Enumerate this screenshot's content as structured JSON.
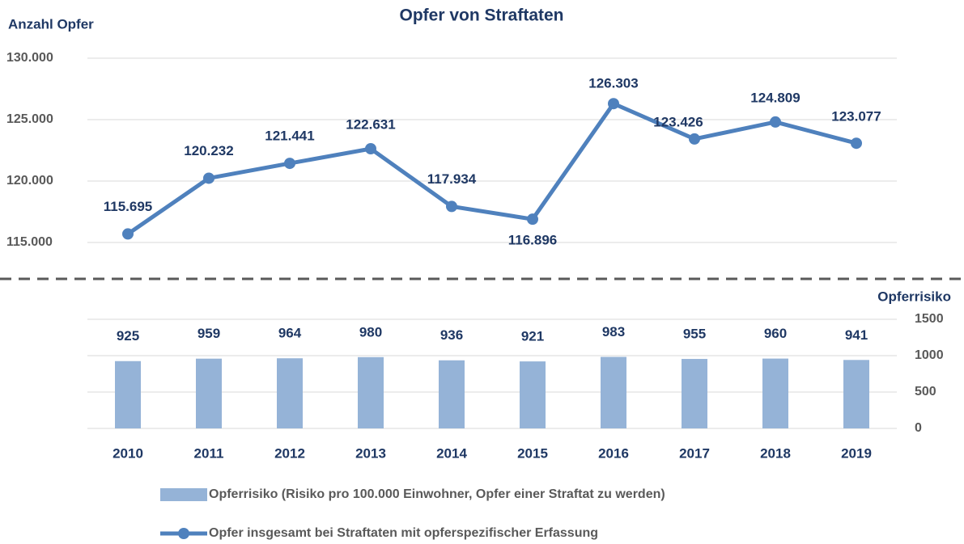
{
  "chart_data": [
    {
      "type": "line",
      "title": "Opfer von Straftaten",
      "y_label": "Anzahl Opfer",
      "series": [
        {
          "name": "Opfer insgesamt bei Straftaten mit opferspezifischer Erfassung",
          "color": "#4f81bd",
          "values": [
            115695,
            120232,
            121441,
            122631,
            117934,
            116896,
            126303,
            123426,
            124809,
            123077
          ],
          "value_labels": [
            "115.695",
            "120.232",
            "121.441",
            "122.631",
            "117.934",
            "116.896",
            "126.303",
            "123.426",
            "124.809",
            "123.077"
          ]
        }
      ],
      "ylim": [
        115000,
        130000
      ],
      "yticks": [
        {
          "value": 115000,
          "label": "115.000"
        },
        {
          "value": 120000,
          "label": "120.000"
        },
        {
          "value": 125000,
          "label": "125.000"
        },
        {
          "value": 130000,
          "label": "130.000"
        }
      ],
      "grid": true
    },
    {
      "type": "bar",
      "y_label": "Opferrisiko",
      "categories": [
        "2010",
        "2011",
        "2012",
        "2013",
        "2014",
        "2015",
        "2016",
        "2017",
        "2018",
        "2019"
      ],
      "series": [
        {
          "name": "Opferrisiko (Risiko pro 100.000 Einwohner, Opfer einer Straftat zu werden)",
          "color": "#95b3d7",
          "values": [
            925,
            959,
            964,
            980,
            936,
            921,
            983,
            955,
            960,
            941
          ]
        }
      ],
      "ylim": [
        0,
        1500
      ],
      "yticks": [
        0,
        500,
        1000,
        1500
      ],
      "grid": true
    }
  ]
}
